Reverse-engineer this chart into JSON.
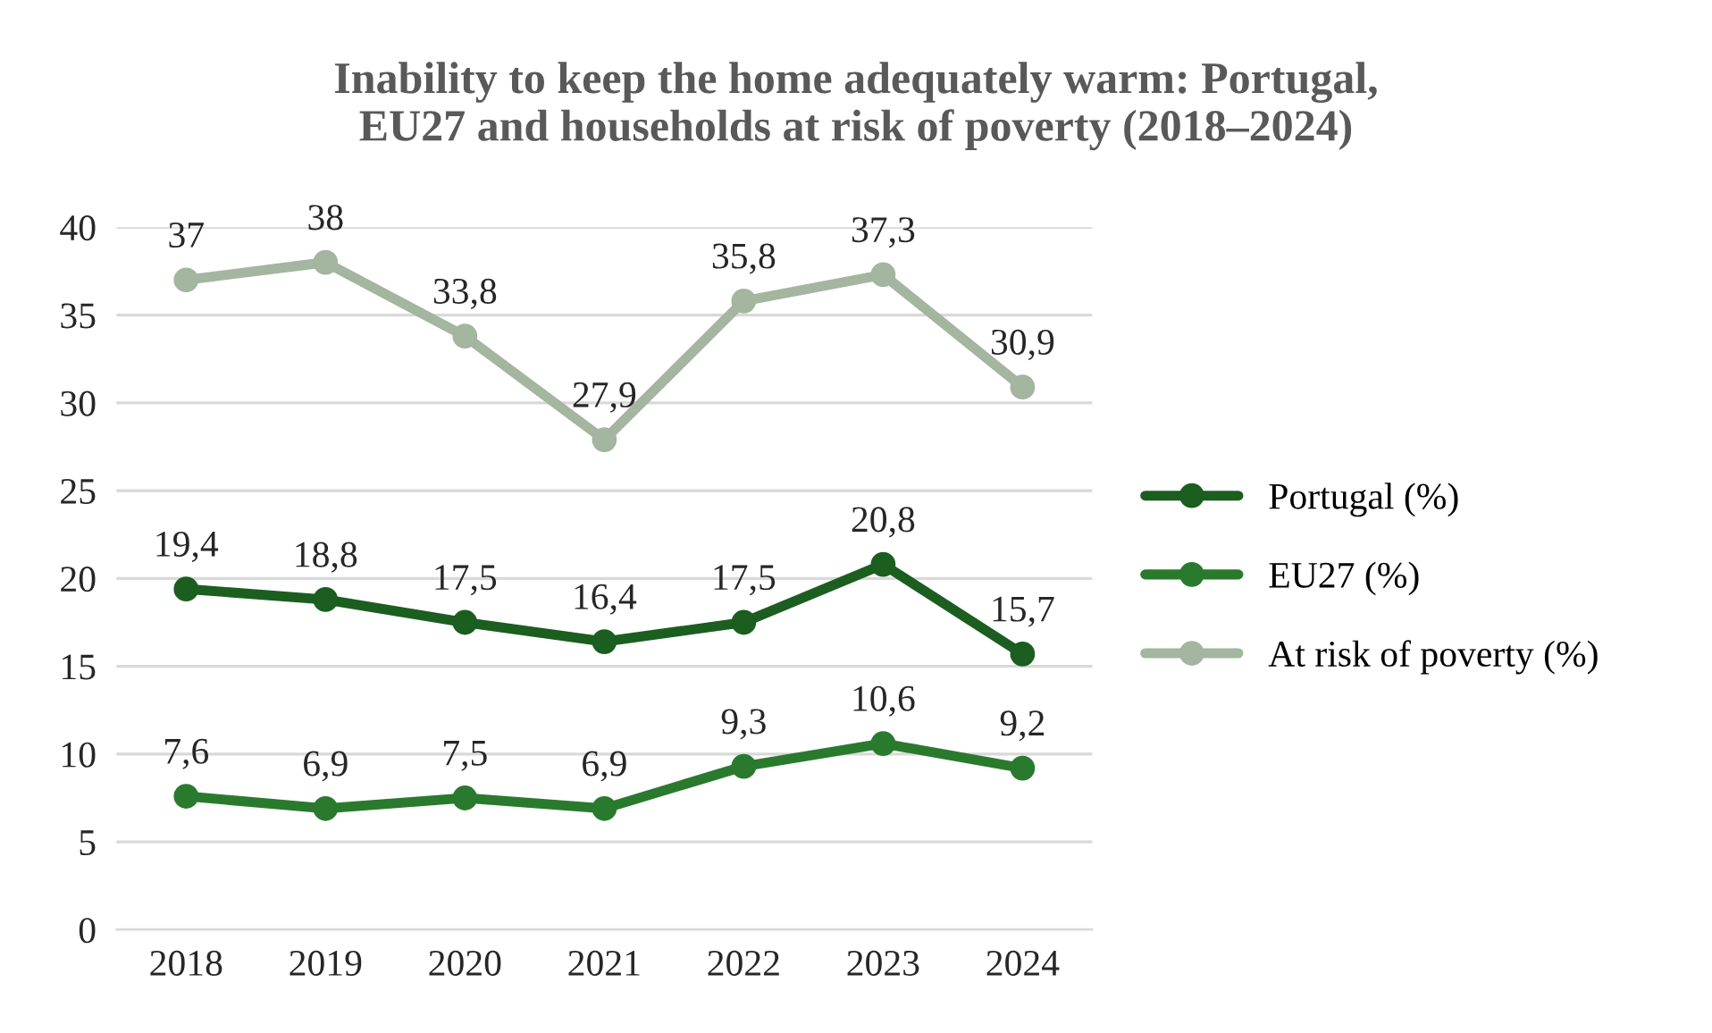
{
  "chart_data": {
    "type": "line",
    "title": "Inability to keep the home adequately warm: Portugal,\nEU27 and households at risk of poverty (2018–2024)",
    "categories": [
      "2018",
      "2019",
      "2020",
      "2021",
      "2022",
      "2023",
      "2024"
    ],
    "series": [
      {
        "name": "Portugal (%)",
        "color": "#1b5e20",
        "values": [
          19.4,
          18.8,
          17.5,
          16.4,
          17.5,
          20.8,
          15.7
        ],
        "value_labels": [
          "19,4",
          "18,8",
          "17,5",
          "16,4",
          "17,5",
          "20,8",
          "15,7"
        ]
      },
      {
        "name": "EU27 (%)",
        "color": "#2a7a2e",
        "values": [
          7.6,
          6.9,
          7.5,
          6.9,
          9.3,
          10.6,
          9.2
        ],
        "value_labels": [
          "7,6",
          "6,9",
          "7,5",
          "6,9",
          "9,3",
          "10,6",
          "9,2"
        ]
      },
      {
        "name": "At risk of poverty (%)",
        "color": "#a4b5a0",
        "values": [
          37,
          38,
          33.8,
          27.9,
          35.8,
          37.3,
          30.9
        ],
        "value_labels": [
          "37",
          "38",
          "33,8",
          "27,9",
          "35,8",
          "37,3",
          "30,9"
        ]
      }
    ],
    "ylim": [
      0,
      40
    ],
    "yticks": [
      0,
      5,
      10,
      15,
      20,
      25,
      30,
      35,
      40
    ],
    "grid": "y",
    "legend": "right",
    "marker": "circle",
    "line_style": "solid"
  }
}
